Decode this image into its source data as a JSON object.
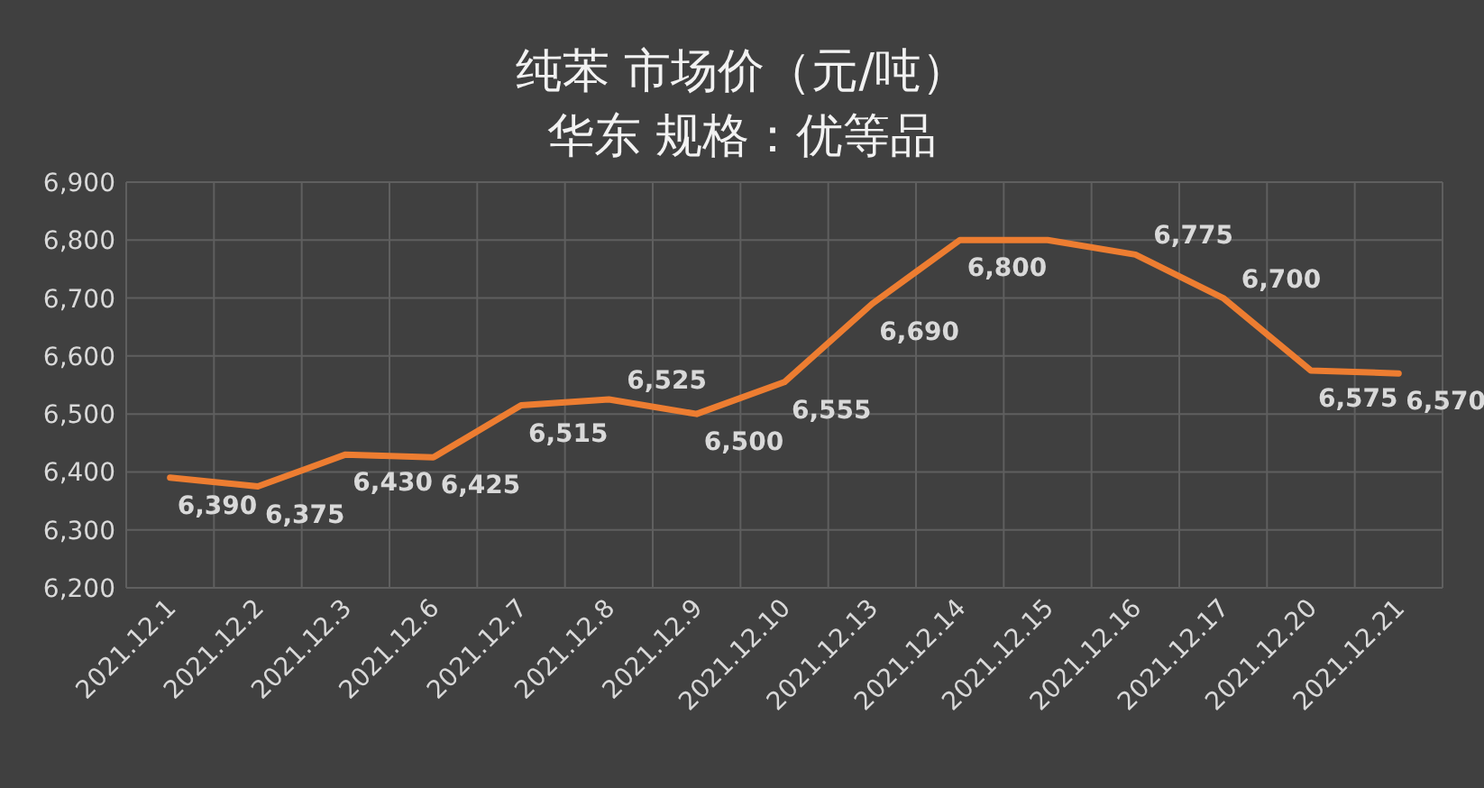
{
  "chart_data": {
    "type": "line",
    "title": "纯苯  市场价（元/吨）",
    "subtitle": "华东      规格：优等品",
    "categories": [
      "2021.12.1",
      "2021.12.2",
      "2021.12.3",
      "2021.12.6",
      "2021.12.7",
      "2021.12.8",
      "2021.12.9",
      "2021.12.10",
      "2021.12.13",
      "2021.12.14",
      "2021.12.15",
      "2021.12.16",
      "2021.12.17",
      "2021.12.20",
      "2021.12.21"
    ],
    "series": [
      {
        "color": "#ed7d31",
        "values": [
          6390,
          6375,
          6430,
          6425,
          6515,
          6525,
          6500,
          6555,
          6690,
          6800,
          6800,
          6775,
          6700,
          6575,
          6570
        ],
        "value_labels": [
          "6,390",
          "6,375",
          "6,430",
          "6,425",
          "6,515",
          "6,525",
          "6,500",
          "6,555",
          "6,690",
          "6,800",
          null,
          "6,775",
          "6,700",
          "6,575",
          "6,570"
        ]
      }
    ],
    "ylim": [
      6200,
      6900
    ],
    "yticks": [
      {
        "value": 6200,
        "label": "6,200"
      },
      {
        "value": 6300,
        "label": "6,300"
      },
      {
        "value": 6400,
        "label": "6,400"
      },
      {
        "value": 6500,
        "label": "6,500"
      },
      {
        "value": 6600,
        "label": "6,600"
      },
      {
        "value": 6700,
        "label": "6,700"
      },
      {
        "value": 6800,
        "label": "6,800"
      },
      {
        "value": 6900,
        "label": "6,900"
      }
    ],
    "grid": true,
    "marker": "none",
    "line_style": "solid"
  }
}
